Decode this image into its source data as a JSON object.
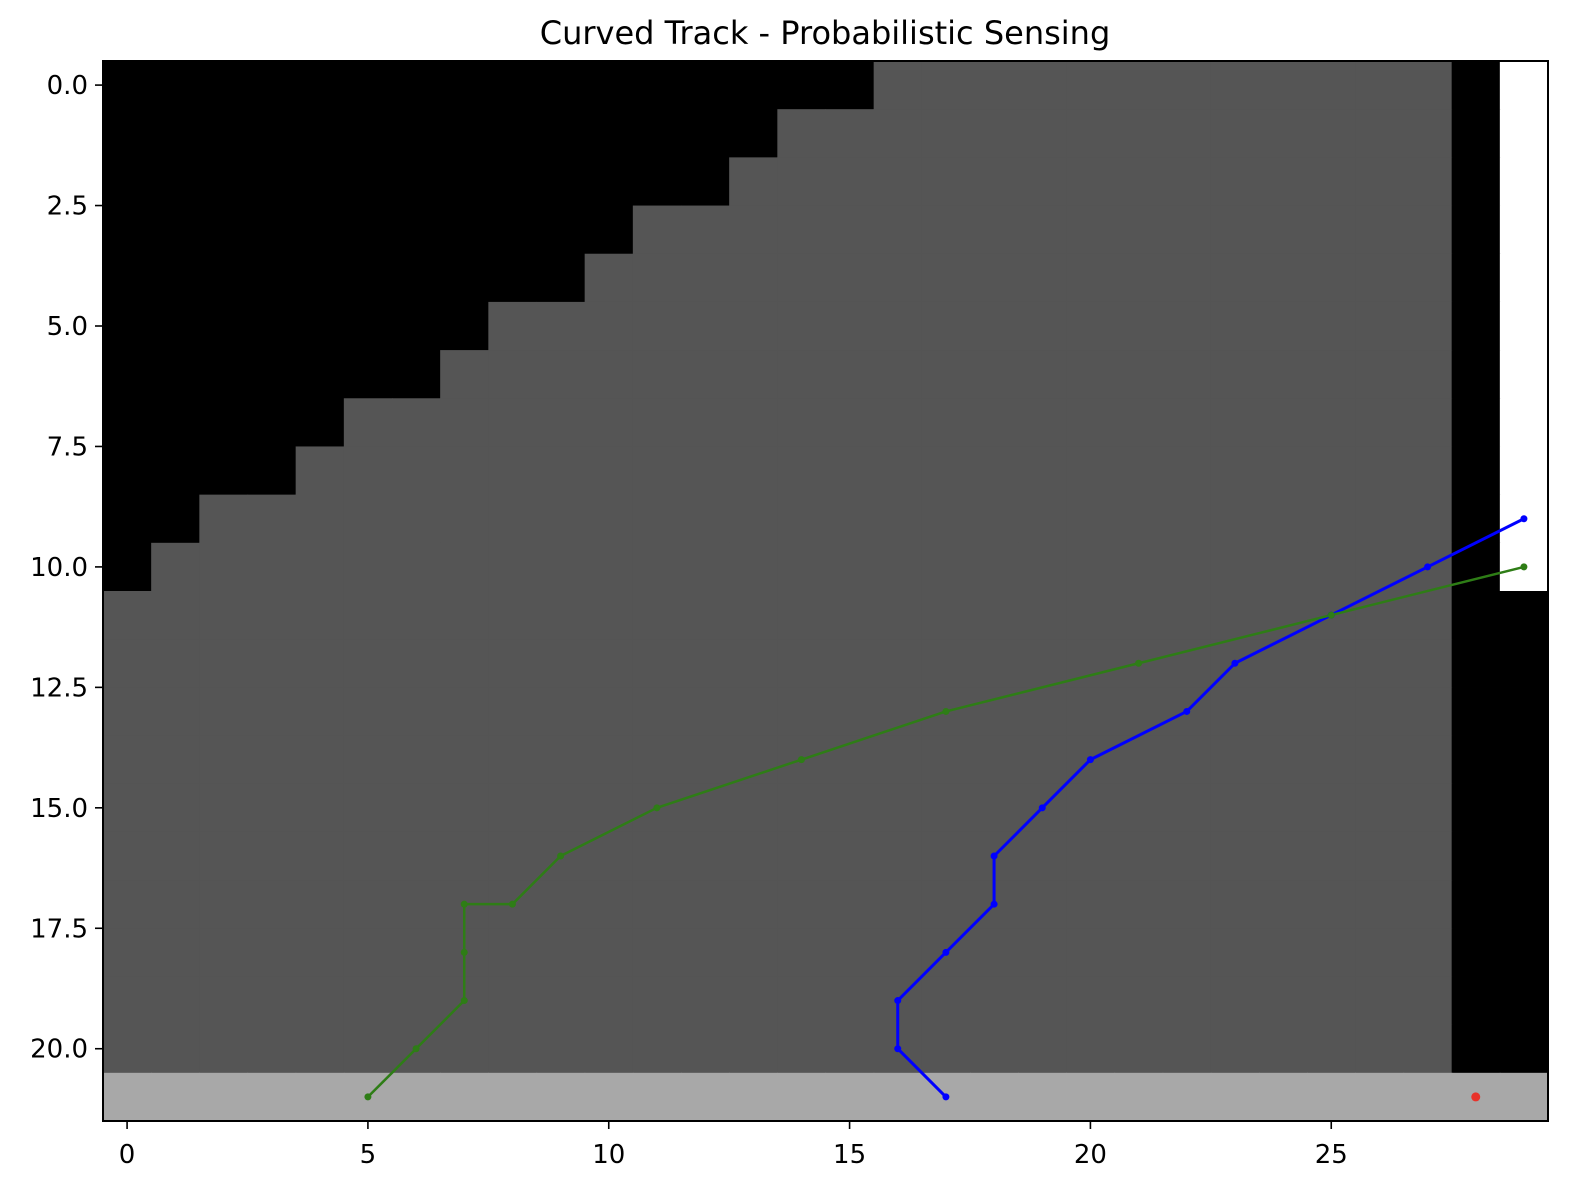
{
  "chart_data": {
    "type": "heatmap",
    "title": "Curved Track - Probabilistic Sensing",
    "xlabel": "",
    "ylabel": "",
    "xlim": [
      -0.5,
      29.5
    ],
    "ylim": [
      21.5,
      -0.5
    ],
    "grid": false,
    "x_ticks": [
      0,
      5,
      10,
      15,
      20,
      25
    ],
    "x_tick_labels": [
      "0",
      "5",
      "10",
      "15",
      "20",
      "25"
    ],
    "y_ticks": [
      0,
      2.5,
      5,
      7.5,
      10,
      12.5,
      15,
      17.5,
      20
    ],
    "y_tick_labels": [
      "0.0",
      "2.5",
      "5.0",
      "7.5",
      "10.0",
      "12.5",
      "15.0",
      "17.5",
      "20.0"
    ],
    "grid_size": {
      "rows": 22,
      "cols": 30
    },
    "cell_colors": {
      "wall": "#000000",
      "track": "#555555",
      "start_line": "#a8a8a8",
      "finish_line": "#ffffff"
    },
    "track_first_col_by_row": [
      16,
      14,
      13,
      11,
      10,
      8,
      7,
      5,
      4,
      2,
      1,
      0,
      0,
      0,
      0,
      0,
      0,
      0,
      0,
      0,
      0,
      0
    ],
    "track_last_col": 27,
    "start_row": 21,
    "finish_col": 29,
    "finish_rows": [
      0,
      10
    ],
    "series": [
      {
        "color": "#0000ff",
        "points": [
          [
            17,
            21
          ],
          [
            16,
            20
          ],
          [
            16,
            19
          ],
          [
            17,
            18
          ],
          [
            18,
            17
          ],
          [
            18,
            16
          ],
          [
            19,
            15
          ],
          [
            20,
            14
          ],
          [
            22,
            13
          ],
          [
            23,
            12
          ],
          [
            25,
            11
          ],
          [
            27,
            10
          ],
          [
            29,
            9
          ]
        ]
      },
      {
        "color": "#2e7d16",
        "points": [
          [
            5,
            21
          ],
          [
            6,
            20
          ],
          [
            7,
            19
          ],
          [
            7,
            18
          ],
          [
            7,
            17
          ],
          [
            8,
            17
          ],
          [
            9,
            16
          ],
          [
            11,
            15
          ],
          [
            14,
            14
          ],
          [
            17,
            13
          ],
          [
            21,
            12
          ],
          [
            25,
            11
          ],
          [
            29,
            10
          ]
        ]
      }
    ],
    "markers": [
      {
        "color": "#e8322a",
        "x": 28,
        "y": 21
      }
    ]
  }
}
